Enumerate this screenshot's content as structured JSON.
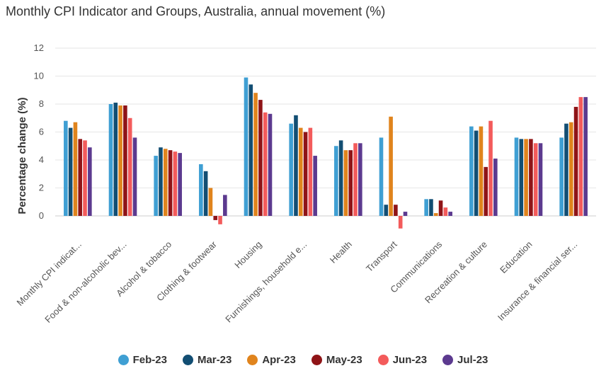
{
  "chart_data": {
    "type": "bar",
    "title": "Monthly CPI Indicator and Groups, Australia, annual movement (%)",
    "xlabel": "",
    "ylabel": "Percentage change (%)",
    "ylim": [
      -2,
      12
    ],
    "yticks": [
      0,
      2,
      4,
      6,
      8,
      10,
      12
    ],
    "grid": true,
    "legend_position": "bottom",
    "categories": [
      "Monthly CPI indicat...",
      "Food & non-alcoholic bev...",
      "Alcohol & tobacco",
      "Clothing & footwear",
      "Housing",
      "Furnishings, household e...",
      "Health",
      "Transport",
      "Communications",
      "Recreation & culture",
      "Education",
      "Insurance & financial ser..."
    ],
    "series": [
      {
        "name": "Feb-23",
        "color": "#3f9fd3",
        "values": [
          6.8,
          8.0,
          4.3,
          3.7,
          9.9,
          6.6,
          5.0,
          5.6,
          1.2,
          6.4,
          5.6,
          5.6
        ]
      },
      {
        "name": "Mar-23",
        "color": "#124e73",
        "values": [
          6.3,
          8.1,
          4.9,
          3.2,
          9.4,
          7.2,
          5.4,
          0.8,
          1.2,
          6.1,
          5.5,
          6.6
        ]
      },
      {
        "name": "Apr-23",
        "color": "#e0841d",
        "values": [
          6.7,
          7.9,
          4.8,
          2.0,
          8.8,
          6.3,
          4.7,
          7.1,
          0.2,
          6.4,
          5.5,
          6.7
        ]
      },
      {
        "name": "May-23",
        "color": "#8f1417",
        "values": [
          5.5,
          7.9,
          4.7,
          -0.3,
          8.3,
          6.0,
          4.7,
          0.8,
          1.1,
          3.5,
          5.5,
          7.8
        ]
      },
      {
        "name": "Jun-23",
        "color": "#f35b5b",
        "values": [
          5.4,
          7.0,
          4.6,
          -0.6,
          7.4,
          6.3,
          5.2,
          -0.9,
          0.6,
          6.8,
          5.2,
          8.5
        ]
      },
      {
        "name": "Jul-23",
        "color": "#5c3a8f",
        "values": [
          4.9,
          5.6,
          4.5,
          1.5,
          7.3,
          4.3,
          5.2,
          0.3,
          0.3,
          4.1,
          5.2,
          8.5
        ]
      }
    ]
  }
}
